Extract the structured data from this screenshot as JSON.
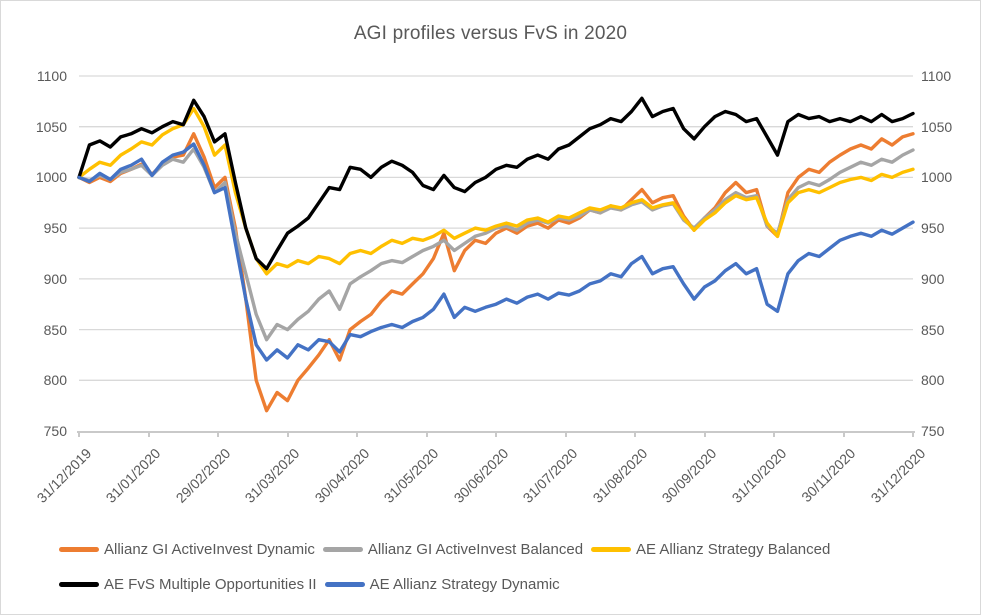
{
  "chart_data": {
    "type": "line",
    "title": "AGI profiles versus FvS in 2020",
    "x_axis": {
      "tick_labels": [
        "31/12/2019",
        "31/01/2020",
        "29/02/2020",
        "31/03/2020",
        "30/04/2020",
        "31/05/2020",
        "30/06/2020",
        "31/07/2020",
        "31/08/2020",
        "30/09/2020",
        "31/10/2020",
        "30/11/2020",
        "31/12/2020"
      ]
    },
    "y_axis": {
      "min": 750,
      "max": 1100,
      "step": 50,
      "ticks": [
        750,
        800,
        850,
        900,
        950,
        1000,
        1050,
        1100
      ],
      "shown_on": "both-sides"
    },
    "x_months": {
      "start": 0,
      "step": 0.15,
      "unit": "months after 31/12/2019"
    },
    "series": [
      {
        "name": "Allianz GI ActiveInvest Dynamic",
        "color": "#ED7D31",
        "values": [
          1000,
          995,
          1000,
          996,
          1004,
          1008,
          1013,
          1003,
          1013,
          1020,
          1022,
          1043,
          1020,
          990,
          1000,
          950,
          880,
          800,
          770,
          788,
          780,
          800,
          812,
          825,
          840,
          820,
          850,
          858,
          865,
          878,
          888,
          885,
          895,
          905,
          920,
          945,
          908,
          928,
          938,
          935,
          945,
          950,
          945,
          952,
          955,
          950,
          958,
          955,
          960,
          968,
          965,
          972,
          968,
          978,
          988,
          975,
          980,
          982,
          962,
          948,
          960,
          970,
          985,
          995,
          985,
          988,
          952,
          942,
          985,
          1000,
          1008,
          1005,
          1015,
          1022,
          1028,
          1032,
          1028,
          1038,
          1032,
          1040,
          1043
        ]
      },
      {
        "name": "Allianz GI ActiveInvest Balanced",
        "color": "#A5A5A5",
        "values": [
          1000,
          997,
          1002,
          998,
          1005,
          1008,
          1012,
          1002,
          1012,
          1018,
          1015,
          1028,
          1010,
          985,
          995,
          945,
          905,
          865,
          840,
          855,
          850,
          860,
          868,
          880,
          888,
          870,
          895,
          902,
          908,
          915,
          918,
          916,
          922,
          928,
          932,
          938,
          928,
          935,
          942,
          945,
          950,
          952,
          948,
          955,
          958,
          955,
          960,
          958,
          962,
          968,
          965,
          970,
          968,
          973,
          976,
          968,
          972,
          974,
          958,
          950,
          960,
          968,
          978,
          985,
          980,
          982,
          952,
          945,
          978,
          990,
          995,
          992,
          998,
          1005,
          1010,
          1015,
          1012,
          1018,
          1015,
          1022,
          1027
        ]
      },
      {
        "name": "AE Allianz Strategy Balanced",
        "color": "#FFC000",
        "values": [
          1000,
          1008,
          1015,
          1012,
          1022,
          1028,
          1035,
          1032,
          1042,
          1048,
          1052,
          1068,
          1050,
          1022,
          1032,
          985,
          950,
          920,
          905,
          915,
          912,
          918,
          915,
          922,
          920,
          915,
          925,
          928,
          925,
          932,
          938,
          935,
          940,
          938,
          942,
          948,
          940,
          945,
          950,
          948,
          952,
          955,
          952,
          958,
          960,
          956,
          962,
          960,
          965,
          970,
          968,
          972,
          970,
          975,
          978,
          970,
          973,
          975,
          960,
          948,
          958,
          965,
          975,
          982,
          978,
          980,
          955,
          942,
          975,
          985,
          988,
          985,
          990,
          995,
          998,
          1000,
          997,
          1003,
          1000,
          1005,
          1008
        ]
      },
      {
        "name": "AE FvS Multiple Opportunities II",
        "color": "#000000",
        "values": [
          1000,
          1032,
          1036,
          1030,
          1040,
          1043,
          1048,
          1044,
          1050,
          1055,
          1052,
          1076,
          1060,
          1035,
          1043,
          995,
          950,
          920,
          910,
          928,
          945,
          952,
          960,
          975,
          990,
          988,
          1010,
          1008,
          1000,
          1010,
          1016,
          1012,
          1005,
          992,
          988,
          1002,
          990,
          986,
          995,
          1000,
          1008,
          1012,
          1010,
          1018,
          1022,
          1018,
          1028,
          1032,
          1040,
          1048,
          1052,
          1058,
          1055,
          1065,
          1078,
          1060,
          1065,
          1068,
          1048,
          1038,
          1050,
          1060,
          1065,
          1062,
          1055,
          1058,
          1040,
          1022,
          1055,
          1062,
          1058,
          1060,
          1055,
          1058,
          1055,
          1060,
          1055,
          1062,
          1055,
          1058,
          1063
        ]
      },
      {
        "name": "AE Allianz Strategy Dynamic",
        "color": "#4472C4",
        "values": [
          1000,
          996,
          1004,
          998,
          1008,
          1012,
          1018,
          1002,
          1015,
          1022,
          1025,
          1033,
          1012,
          985,
          990,
          935,
          880,
          835,
          820,
          830,
          822,
          835,
          830,
          840,
          838,
          828,
          845,
          843,
          848,
          852,
          855,
          852,
          858,
          862,
          870,
          885,
          862,
          872,
          868,
          872,
          875,
          880,
          876,
          882,
          885,
          880,
          886,
          884,
          888,
          895,
          898,
          905,
          902,
          915,
          922,
          905,
          910,
          912,
          895,
          880,
          892,
          898,
          908,
          915,
          905,
          910,
          875,
          868,
          905,
          918,
          925,
          922,
          930,
          938,
          942,
          945,
          942,
          948,
          944,
          950,
          956
        ]
      }
    ],
    "legend": {
      "position": "bottom",
      "rows": [
        [
          0,
          1,
          2
        ],
        [
          3,
          4
        ]
      ]
    },
    "grid": true,
    "colors": {
      "grid": "#D9D9D9",
      "axis": "#C9C9C9",
      "text": "#595959",
      "border": "#D9D9D9",
      "background": "#FFFFFF"
    }
  }
}
